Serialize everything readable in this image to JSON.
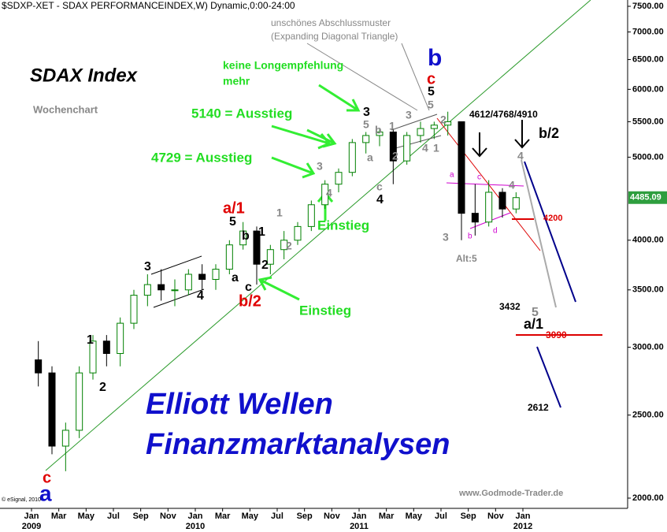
{
  "chart_data": {
    "type": "candlestick",
    "title": "$SDXP-XET - SDAX PERFORMANCEINDEX,W) Dynamic,0:00-24:00",
    "x": [
      "2009-01",
      "2009-02",
      "2009-03",
      "2009-04",
      "2009-05",
      "2009-06",
      "2009-07",
      "2009-08",
      "2009-09",
      "2009-10",
      "2009-11",
      "2009-12",
      "2010-01",
      "2010-02",
      "2010-03",
      "2010-04",
      "2010-05",
      "2010-06",
      "2010-07",
      "2010-08",
      "2010-09",
      "2010-10",
      "2010-11",
      "2010-12",
      "2011-01",
      "2011-02",
      "2011-03",
      "2011-04",
      "2011-05",
      "2011-06",
      "2011-07",
      "2011-08",
      "2011-09",
      "2011-10",
      "2011-11",
      "2011-12"
    ],
    "open": [
      2900,
      2800,
      2300,
      2400,
      2800,
      3050,
      2950,
      3200,
      3450,
      3550,
      3500,
      3500,
      3650,
      3600,
      3700,
      3950,
      4100,
      3750,
      3900,
      4000,
      4150,
      4400,
      4650,
      4800,
      5200,
      5300,
      5350,
      4950,
      5300,
      5400,
      5450,
      5500,
      4300,
      4200,
      4550,
      4350
    ],
    "high": [
      3050,
      2850,
      2450,
      2850,
      3100,
      3100,
      3250,
      3500,
      3650,
      3700,
      3600,
      3700,
      3750,
      3750,
      4000,
      4200,
      4150,
      3950,
      4100,
      4200,
      4450,
      4700,
      4850,
      5250,
      5350,
      5400,
      5400,
      5350,
      5500,
      5500,
      5650,
      5500,
      4650,
      4700,
      4600,
      4550
    ],
    "low": [
      2700,
      2250,
      2150,
      2350,
      2750,
      2850,
      2850,
      3150,
      3350,
      3400,
      3350,
      3450,
      3500,
      3500,
      3650,
      3900,
      3550,
      3650,
      3800,
      3950,
      4100,
      4350,
      4550,
      4750,
      5050,
      5150,
      4650,
      4900,
      5200,
      5250,
      5300,
      4000,
      4050,
      4150,
      4250,
      4300
    ],
    "close": [
      2800,
      2300,
      2400,
      2800,
      3050,
      2950,
      3200,
      3450,
      3550,
      3500,
      3500,
      3650,
      3600,
      3700,
      3950,
      4100,
      3750,
      3900,
      4000,
      4150,
      4400,
      4650,
      4800,
      5200,
      5300,
      5350,
      4950,
      5300,
      5400,
      5450,
      5500,
      4300,
      4200,
      4550,
      4350,
      4485.09
    ],
    "up_color": "#008000",
    "down_color": "#000000",
    "log_scale": true,
    "ylim": [
      2000,
      7500
    ],
    "yticks": [
      {
        "value": 2000,
        "label": "2000.00"
      },
      {
        "value": 2500,
        "label": "2500.00"
      },
      {
        "value": 3000,
        "label": "3000.00"
      },
      {
        "value": 3500,
        "label": "3500.00"
      },
      {
        "value": 4000,
        "label": "4000.00"
      },
      {
        "value": 5000,
        "label": "5000.00"
      },
      {
        "value": 5500,
        "label": "5500.00"
      },
      {
        "value": 6000,
        "label": "6000.00"
      },
      {
        "value": 6500,
        "label": "6500.00"
      },
      {
        "value": 7000,
        "label": "7000.00"
      },
      {
        "value": 7500,
        "label": "7500.00"
      }
    ],
    "xticks": [
      {
        "value": "2009-01",
        "label": "Jan"
      },
      {
        "value": "2009-03",
        "label": "Mar"
      },
      {
        "value": "2009-05",
        "label": "May"
      },
      {
        "value": "2009-07",
        "label": "Jul"
      },
      {
        "value": "2009-09",
        "label": "Sep"
      },
      {
        "value": "2009-11",
        "label": "Nov"
      },
      {
        "value": "2010-01",
        "label": "Jan"
      },
      {
        "value": "2010-03",
        "label": "Mar"
      },
      {
        "value": "2010-05",
        "label": "May"
      },
      {
        "value": "2010-07",
        "label": "Jul"
      },
      {
        "value": "2010-09",
        "label": "Sep"
      },
      {
        "value": "2010-11",
        "label": "Nov"
      },
      {
        "value": "2011-01",
        "label": "Jan"
      },
      {
        "value": "2011-03",
        "label": "Mar"
      },
      {
        "value": "2011-05",
        "label": "May"
      },
      {
        "value": "2011-07",
        "label": "Jul"
      },
      {
        "value": "2011-09",
        "label": "Sep"
      },
      {
        "value": "2011-11",
        "label": "Nov"
      },
      {
        "value": "2012-01",
        "label": "Jan"
      }
    ],
    "year_labels": [
      {
        "value": "2009-01",
        "label": "2009"
      },
      {
        "value": "2010-01",
        "label": "2010"
      },
      {
        "value": "2011-01",
        "label": "2011"
      },
      {
        "value": "2012-01",
        "label": "2012"
      }
    ],
    "annotations": [
      "SDAX Index",
      "Wochenchart",
      "keine Longempfehlung",
      "mehr",
      "5140 = Ausstieg",
      "4729 = Ausstieg",
      "Einstieg",
      "Einstieg",
      "unschönes Abschlussmuster",
      "(Expanding Diagonal Triangle)",
      "Elliott Wellen",
      "Finanzmarktanalysen",
      "b",
      "c",
      "5",
      "3",
      "5",
      "b",
      "1",
      "3",
      "5",
      "2",
      "4",
      "1",
      "2",
      "a",
      "c",
      "4",
      "3",
      "4",
      "1",
      "1",
      "2",
      "b",
      "5",
      "a/1",
      "2",
      "a",
      "c",
      "b/2",
      "3",
      "4",
      "1",
      "2",
      "c",
      "a",
      "4612/4768/4910",
      "b/2",
      "4",
      "4",
      "a",
      "c",
      "b",
      "d",
      "4200",
      "Alt:5",
      "3",
      "3432",
      "5",
      "a/1",
      "3090",
      "2612",
      "www.Godmode-Trader.de",
      "© eSignal, 2010"
    ]
  }
}
